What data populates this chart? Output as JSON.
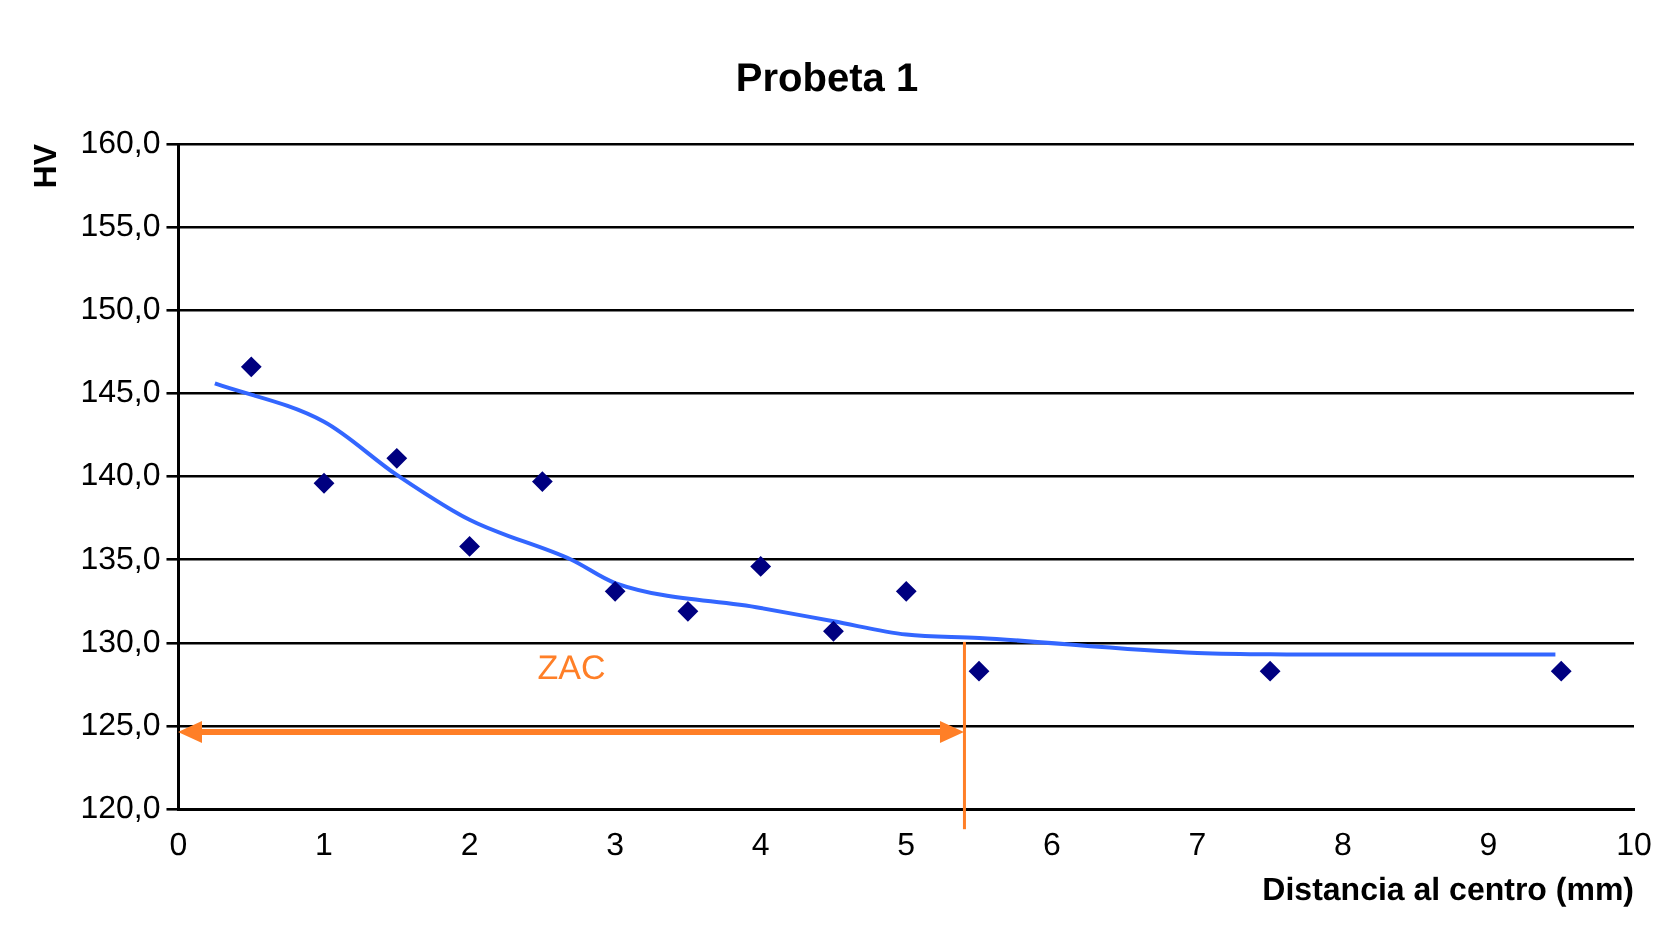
{
  "chart_data": {
    "type": "scatter",
    "title": "Probeta 1",
    "xlabel": "Distancia al centro (mm)",
    "ylabel": "HV",
    "series": [
      {
        "color": "#000080",
        "marker": "diamond",
        "x": [
          0.5,
          1,
          1.5,
          2,
          2.5,
          3,
          3.5,
          4,
          4.5,
          5,
          5.5,
          7.5,
          9.5
        ],
        "values": [
          146.6,
          139.6,
          141.1,
          135.8,
          139.7,
          133.1,
          131.9,
          134.6,
          130.7,
          133.1,
          128.3,
          128.3,
          128.3
        ]
      },
      {
        "type": "line",
        "color": "#3366ff",
        "marker": "none",
        "x": [
          0.25,
          1,
          1.5,
          2,
          2.7,
          3,
          4,
          4.5,
          5,
          5.5,
          7,
          8,
          9.46
        ],
        "values": [
          145.6,
          143.3,
          140.1,
          137.4,
          135.0,
          133.6,
          132.1,
          131.3,
          130.5,
          130.3,
          129.4,
          129.3,
          129.3
        ]
      }
    ],
    "xlim": [
      0,
      10
    ],
    "xticks": [
      0,
      1,
      2,
      3,
      4,
      5,
      6,
      7,
      8,
      9,
      10
    ],
    "ylim": [
      120,
      160
    ],
    "yticks": [
      {
        "value": 120,
        "label": "120,0"
      },
      {
        "value": 125,
        "label": "125,0"
      },
      {
        "value": 130,
        "label": "130,0"
      },
      {
        "value": 135,
        "label": "135,0"
      },
      {
        "value": 140,
        "label": "140,0"
      },
      {
        "value": 145,
        "label": "145,0"
      },
      {
        "value": 150,
        "label": "150,0"
      },
      {
        "value": 155,
        "label": "155,0"
      },
      {
        "value": 160,
        "label": "160,0"
      }
    ],
    "grid": "y",
    "legend": false,
    "ref_lines": [
      {
        "axis": "x",
        "value": 5.4,
        "color": "#ff7f27"
      }
    ],
    "annotations": [
      "ZAC"
    ]
  }
}
